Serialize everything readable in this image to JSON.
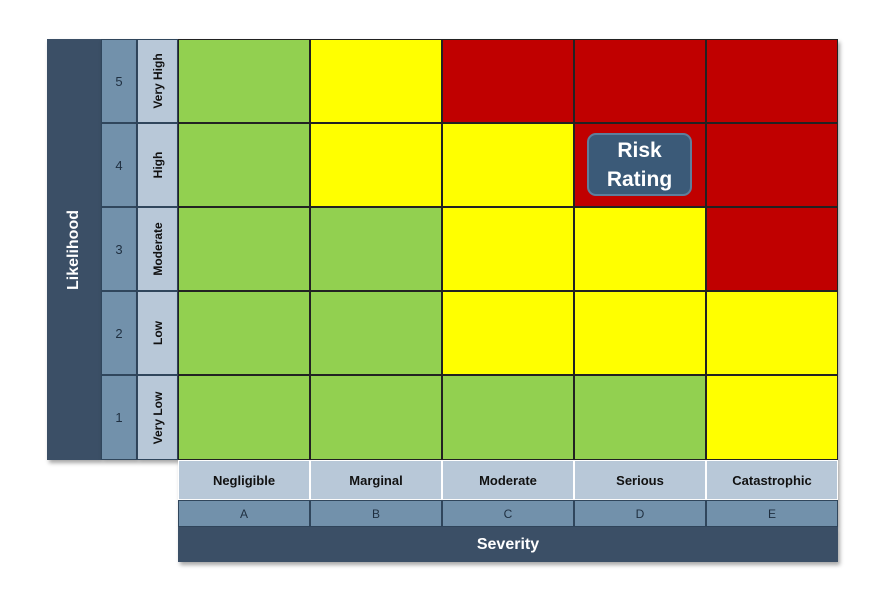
{
  "likelihood": {
    "title": "Likelihood",
    "levels": [
      {
        "number": "5",
        "label": "Very High"
      },
      {
        "number": "4",
        "label": "High"
      },
      {
        "number": "3",
        "label": "Moderate"
      },
      {
        "number": "2",
        "label": "Low"
      },
      {
        "number": "1",
        "label": "Very Low"
      }
    ]
  },
  "severity": {
    "title": "Severity",
    "levels": [
      {
        "label": "Negligible",
        "letter": "A"
      },
      {
        "label": "Marginal",
        "letter": "B"
      },
      {
        "label": "Moderate",
        "letter": "C"
      },
      {
        "label": "Serious",
        "letter": "D"
      },
      {
        "label": "Catastrophic",
        "letter": "E"
      }
    ]
  },
  "colors": {
    "low": "#92d050",
    "medium": "#ffff00",
    "high": "#c00000",
    "header_dark": "#3b4f66",
    "header_mid": "#7291ab",
    "header_light": "#b8c8d8"
  },
  "matrix": [
    [
      "low",
      "medium",
      "high",
      "high",
      "high"
    ],
    [
      "low",
      "medium",
      "medium",
      "high",
      "high"
    ],
    [
      "low",
      "low",
      "medium",
      "medium",
      "high"
    ],
    [
      "low",
      "low",
      "medium",
      "medium",
      "medium"
    ],
    [
      "low",
      "low",
      "low",
      "low",
      "medium"
    ]
  ],
  "badge": {
    "line1": "Risk",
    "line2": "Rating"
  }
}
